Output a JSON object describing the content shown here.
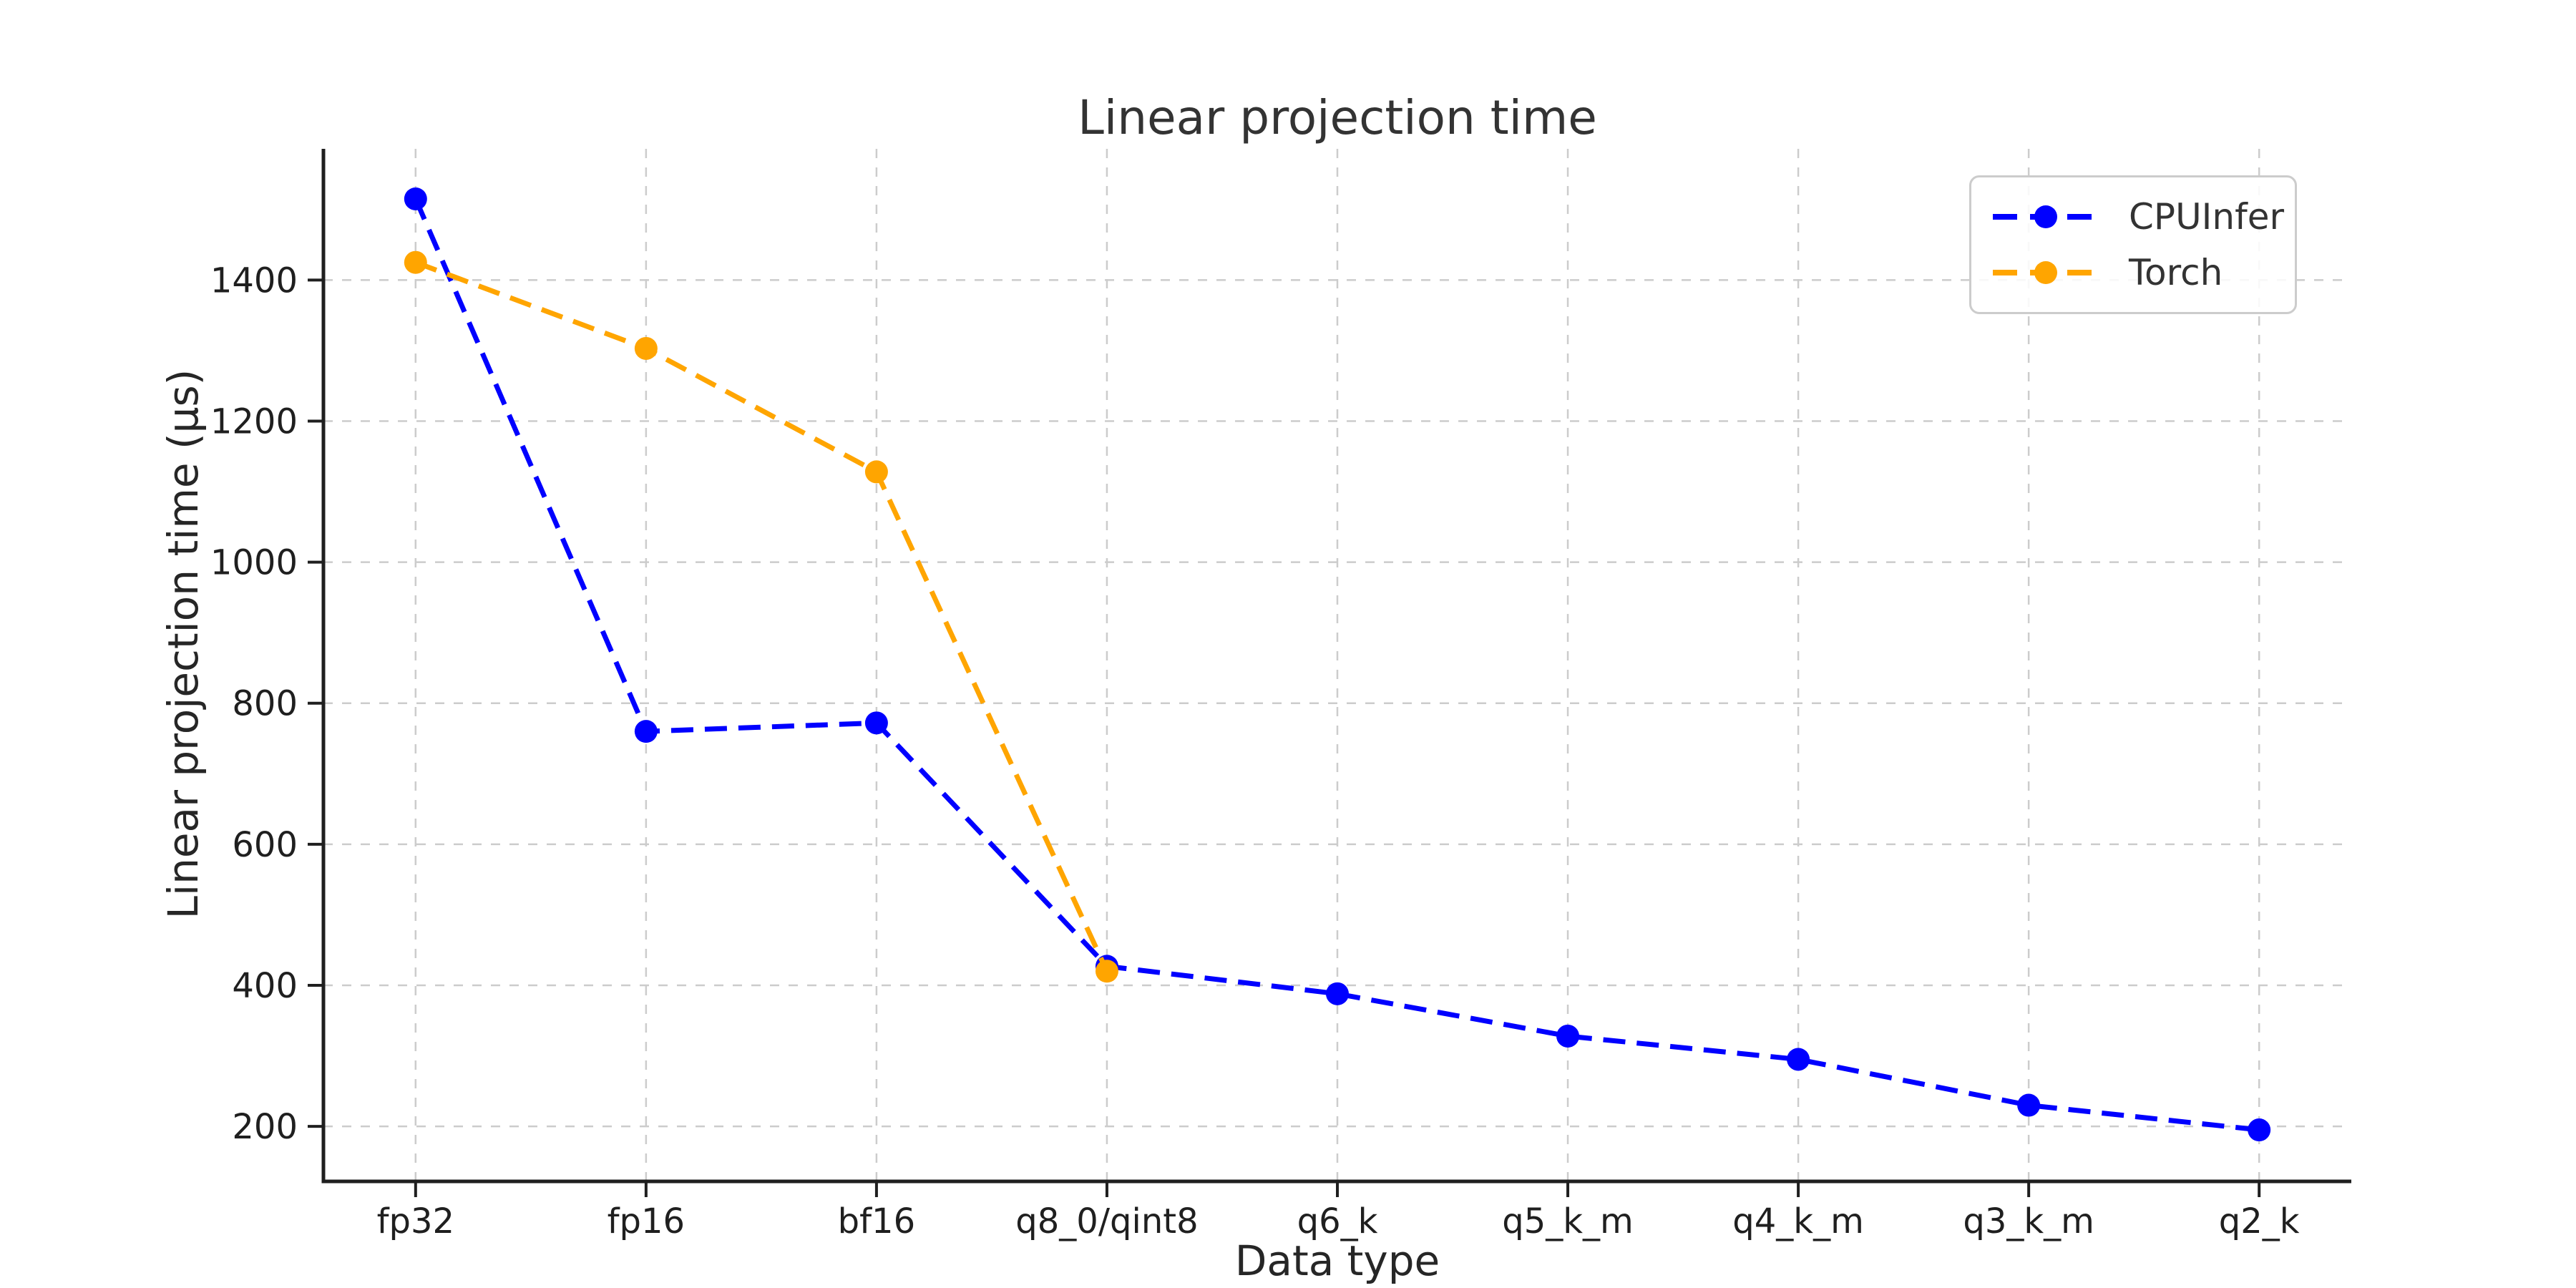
{
  "chart_data": {
    "type": "line",
    "title": "Linear projection time",
    "xlabel": "Data type",
    "ylabel": "Linear projection time (μs)",
    "categories": [
      "fp32",
      "fp16",
      "bf16",
      "q8_0/qint8",
      "q6_k",
      "q5_k_m",
      "q4_k_m",
      "q3_k_m",
      "q2_k"
    ],
    "series": [
      {
        "name": "CPUInfer",
        "color": "#0000ff",
        "values": [
          1515,
          760,
          772,
          427,
          388,
          328,
          295,
          230,
          195
        ]
      },
      {
        "name": "Torch",
        "color": "#ffa500",
        "values": [
          1425,
          1303,
          1128,
          420,
          null,
          null,
          null,
          null,
          null
        ]
      }
    ],
    "yticks": [
      200,
      400,
      600,
      800,
      1000,
      1200,
      1400
    ],
    "ylim": [
      122,
      1586
    ],
    "line_style": "dashed",
    "marker": "circle",
    "grid": {
      "show": true,
      "style": "dashed",
      "color": "#cccccc"
    },
    "legend": {
      "position": "upper right",
      "entries": [
        "CPUInfer",
        "Torch"
      ]
    },
    "axis_color": "#1f1f1f",
    "background": "#ffffff"
  }
}
